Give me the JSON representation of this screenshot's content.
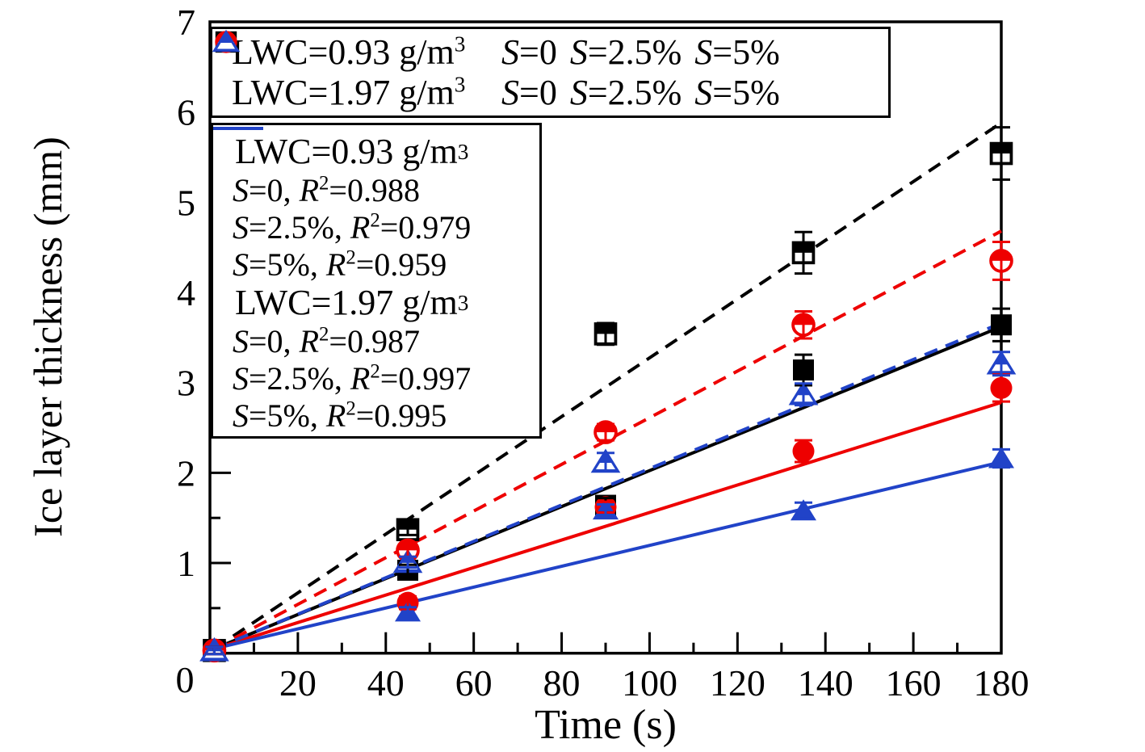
{
  "colors": {
    "black": "#000000",
    "red": "#ee0000",
    "blue": "#2143c8",
    "frame": "#000000",
    "background": "#ffffff"
  },
  "axes": {
    "xlabel": "Time (s)",
    "ylabel": "Ice layer thickness (mm)",
    "x_major_ticks": [
      0,
      20,
      40,
      60,
      80,
      100,
      120,
      140,
      160,
      180
    ],
    "x_minor_step": 10,
    "y_major_ticks": [
      0,
      1,
      2,
      3,
      4,
      5,
      6,
      7
    ],
    "y_minor_step": 0.5,
    "origin_label": "0",
    "xlim": [
      0,
      180
    ],
    "ylim": [
      0,
      7
    ]
  },
  "legend_markers": {
    "rows": [
      {
        "group": "LWC=0.93 g/m³",
        "entries": [
          {
            "marker": "square",
            "fill": "full",
            "color": "black",
            "label": "S=0"
          },
          {
            "marker": "circle",
            "fill": "full",
            "color": "red",
            "label": "S=2.5%"
          },
          {
            "marker": "triangle",
            "fill": "full",
            "color": "blue",
            "label": "S=5%"
          }
        ]
      },
      {
        "group": "LWC=1.97 g/m³",
        "entries": [
          {
            "marker": "square",
            "fill": "half",
            "color": "black",
            "label": "S=0"
          },
          {
            "marker": "circle",
            "fill": "half",
            "color": "red",
            "label": "S=2.5%"
          },
          {
            "marker": "triangle",
            "fill": "half",
            "color": "blue",
            "label": "S=5%"
          }
        ]
      }
    ]
  },
  "legend_fits": {
    "groups": [
      {
        "header": "LWC=0.93 g/m³",
        "entries": [
          {
            "line": "solid",
            "color": "black",
            "label": "S=0, R²=0.988"
          },
          {
            "line": "solid",
            "color": "red",
            "label": "S=2.5%, R²=0.979"
          },
          {
            "line": "solid",
            "color": "blue",
            "label": "S=5%, R²=0.959"
          }
        ]
      },
      {
        "header": "LWC=1.97 g/m³",
        "entries": [
          {
            "line": "dashed",
            "color": "black",
            "label": "S=0, R²=0.987"
          },
          {
            "line": "dashed",
            "color": "red",
            "label": "S=2.5%, R²=0.997"
          },
          {
            "line": "dashed",
            "color": "blue",
            "label": "S=5%, R²=0.995"
          }
        ]
      }
    ]
  },
  "chart_data": {
    "type": "scatter",
    "title": "",
    "xlabel": "Time (s)",
    "ylabel": "Ice layer thickness (mm)",
    "xlim": [
      0,
      180
    ],
    "ylim": [
      0,
      7
    ],
    "grid": false,
    "x": [
      1,
      45,
      90,
      135,
      180
    ],
    "series": [
      {
        "name": "LWC=0.93 g/m³, S=0",
        "lwc": "0.93 g/m³",
        "s": "0",
        "marker": "square",
        "fill": "full",
        "color": "black",
        "values": [
          0.03,
          0.92,
          1.64,
          3.14,
          3.64
        ],
        "errors": [
          0.04,
          0.06,
          0.08,
          0.17,
          0.18
        ],
        "fit": {
          "style": "solid",
          "r2": 0.988,
          "start": [
            1,
            0.05
          ],
          "end": [
            180,
            3.62
          ]
        }
      },
      {
        "name": "LWC=0.93 g/m³, S=2.5%",
        "lwc": "0.93 g/m³",
        "s": "2.5%",
        "marker": "circle",
        "fill": "full",
        "color": "red",
        "values": [
          0.03,
          0.56,
          1.62,
          2.24,
          2.94
        ],
        "errors": [
          0.04,
          0.07,
          0.06,
          0.12,
          0.15
        ],
        "fit": {
          "style": "solid",
          "r2": 0.979,
          "start": [
            1,
            0.05
          ],
          "end": [
            180,
            2.78
          ]
        }
      },
      {
        "name": "LWC=0.93 g/m³, S=5%",
        "lwc": "0.93 g/m³",
        "s": "5%",
        "marker": "triangle",
        "fill": "full",
        "color": "blue",
        "values": [
          0.03,
          0.46,
          1.59,
          1.58,
          2.16
        ],
        "errors": [
          0.04,
          0.05,
          0.06,
          0.09,
          0.1
        ],
        "fit": {
          "style": "solid",
          "r2": 0.959,
          "start": [
            1,
            0.05
          ],
          "end": [
            180,
            2.12
          ]
        }
      },
      {
        "name": "LWC=1.97 g/m³, S=0",
        "lwc": "1.97 g/m³",
        "s": "0",
        "marker": "square",
        "fill": "half",
        "color": "black",
        "values": [
          0.03,
          1.37,
          3.54,
          4.44,
          5.54
        ],
        "errors": [
          0.04,
          0.06,
          0.12,
          0.23,
          0.29
        ],
        "fit": {
          "style": "dashed",
          "r2": 0.987,
          "start": [
            1,
            0.05
          ],
          "end": [
            180,
            5.88
          ]
        }
      },
      {
        "name": "LWC=1.97 g/m³, S=2.5%",
        "lwc": "1.97 g/m³",
        "s": "2.5%",
        "marker": "circle",
        "fill": "half",
        "color": "red",
        "values": [
          0.03,
          1.14,
          2.45,
          3.64,
          4.35
        ],
        "errors": [
          0.04,
          0.07,
          0.09,
          0.15,
          0.21
        ],
        "fit": {
          "style": "dashed",
          "r2": 0.997,
          "start": [
            1,
            0.05
          ],
          "end": [
            180,
            4.68
          ]
        }
      },
      {
        "name": "LWC=1.97 g/m³, S=5%",
        "lwc": "1.97 g/m³",
        "s": "5%",
        "marker": "triangle",
        "fill": "half",
        "color": "blue",
        "values": [
          0.03,
          1.01,
          2.12,
          2.87,
          3.21
        ],
        "errors": [
          0.04,
          0.06,
          0.1,
          0.12,
          0.13
        ],
        "fit": {
          "style": "dashed",
          "r2": 0.995,
          "start": [
            1,
            0.05
          ],
          "end": [
            180,
            3.66
          ]
        }
      }
    ]
  }
}
